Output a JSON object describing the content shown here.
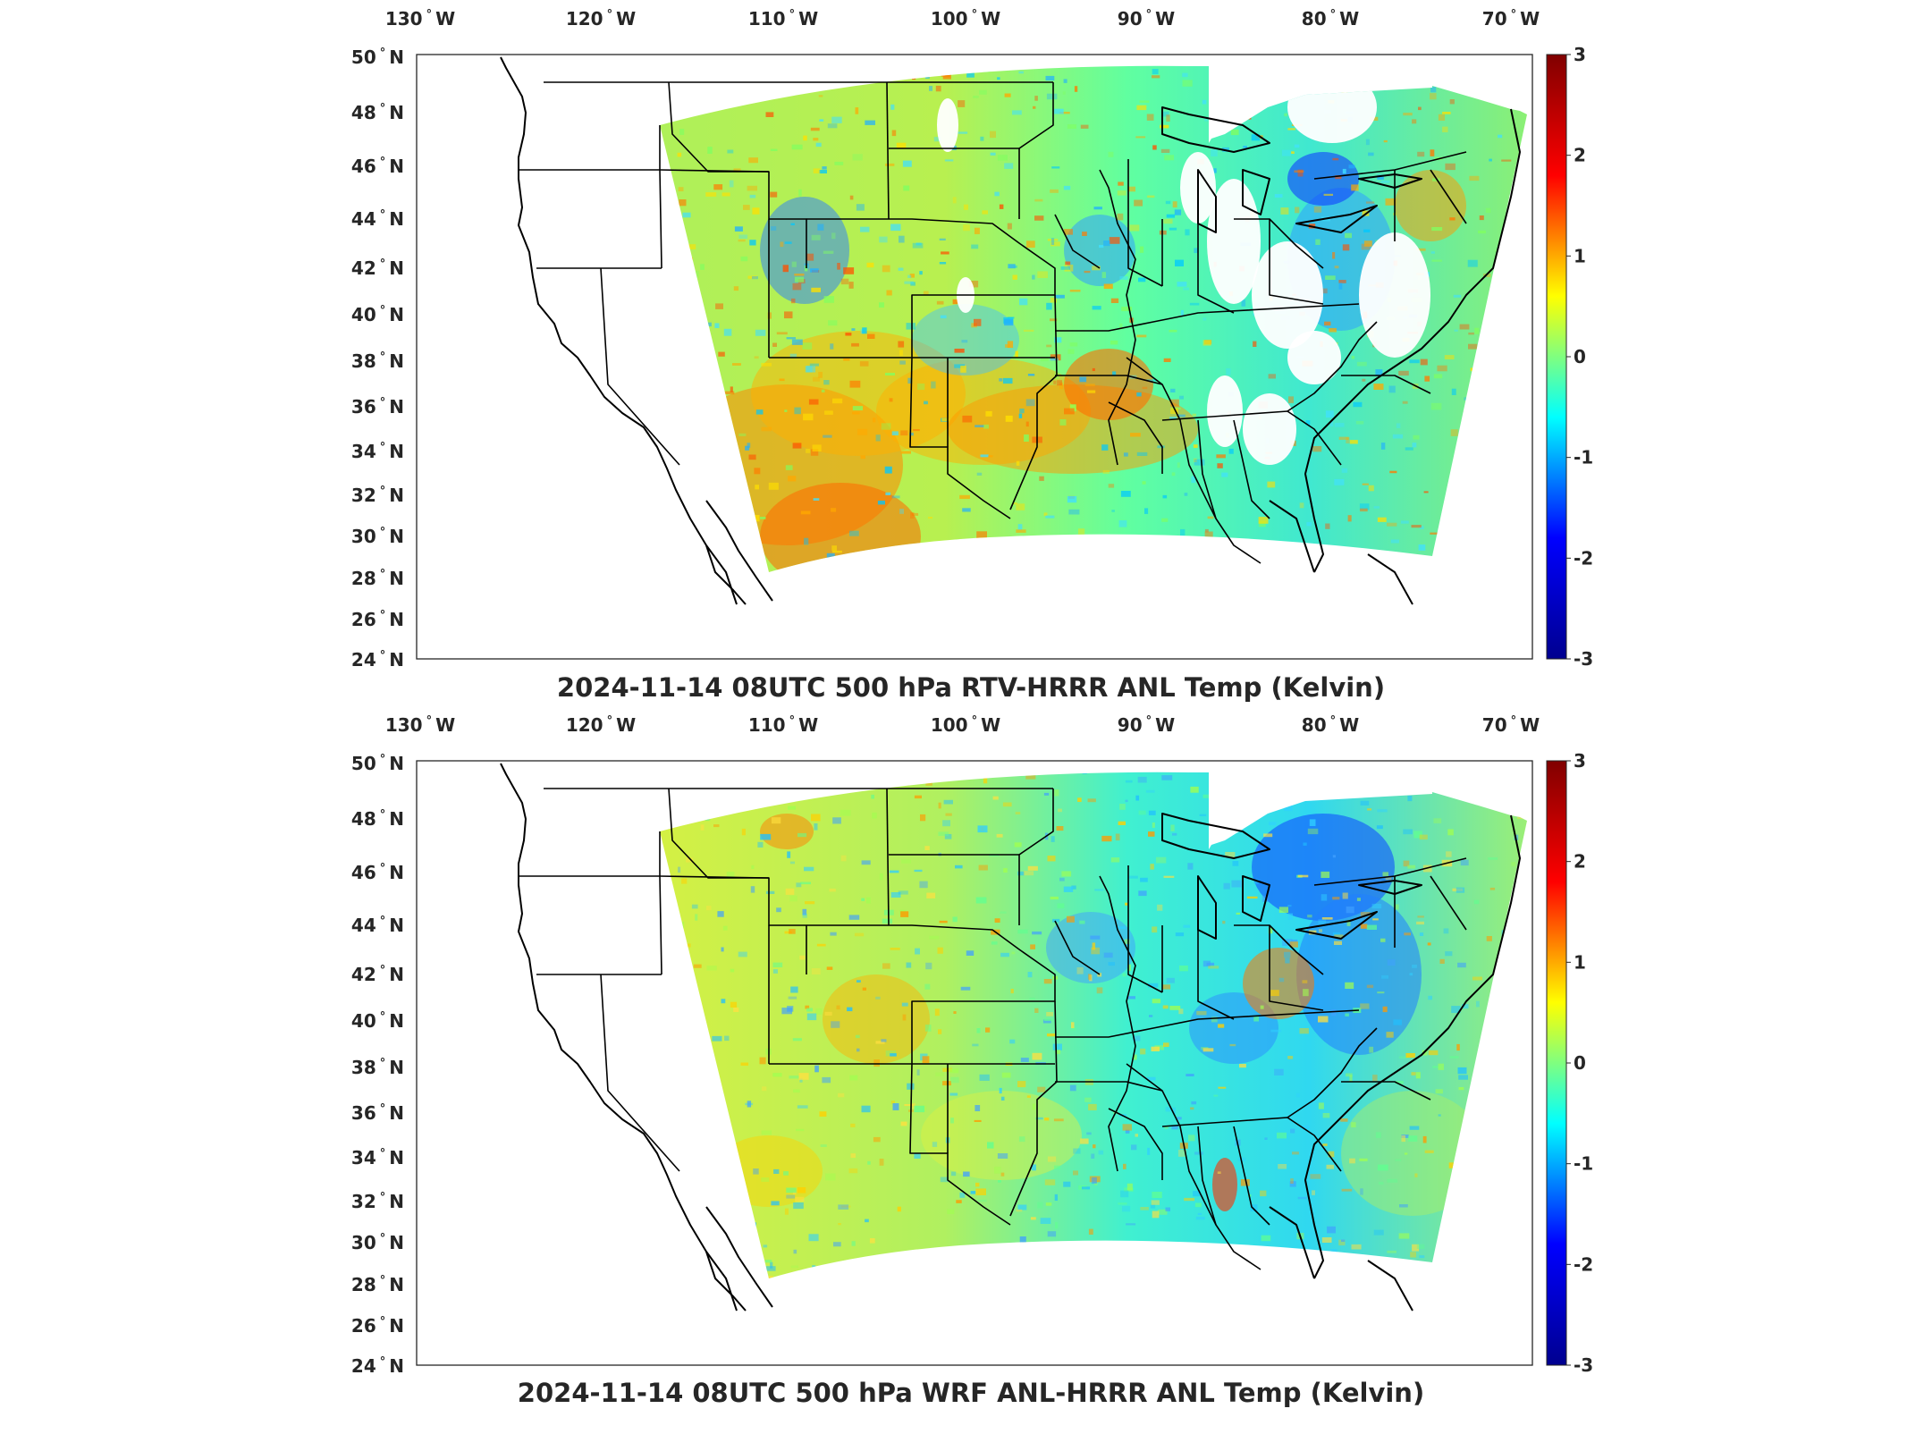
{
  "panels": [
    {
      "title": "2024-11-14 08UTC 500 hPa RTV-HRRR ANL Temp (Kelvin)",
      "field_type": "rtv"
    },
    {
      "title": "2024-11-14 08UTC 500 hPa WRF ANL-HRRR ANL Temp (Kelvin)",
      "field_type": "wrf"
    }
  ],
  "lon_labels": [
    {
      "deg": "130",
      "hem": "W"
    },
    {
      "deg": "120",
      "hem": "W"
    },
    {
      "deg": "110",
      "hem": "W"
    },
    {
      "deg": "100",
      "hem": "W"
    },
    {
      "deg": "90",
      "hem": "W"
    },
    {
      "deg": "80",
      "hem": "W"
    },
    {
      "deg": "70",
      "hem": "W"
    }
  ],
  "lat_labels": [
    {
      "deg": "50",
      "hem": "N"
    },
    {
      "deg": "48",
      "hem": "N"
    },
    {
      "deg": "46",
      "hem": "N"
    },
    {
      "deg": "44",
      "hem": "N"
    },
    {
      "deg": "42",
      "hem": "N"
    },
    {
      "deg": "40",
      "hem": "N"
    },
    {
      "deg": "38",
      "hem": "N"
    },
    {
      "deg": "36",
      "hem": "N"
    },
    {
      "deg": "34",
      "hem": "N"
    },
    {
      "deg": "32",
      "hem": "N"
    },
    {
      "deg": "30",
      "hem": "N"
    },
    {
      "deg": "28",
      "hem": "N"
    },
    {
      "deg": "26",
      "hem": "N"
    },
    {
      "deg": "24",
      "hem": "N"
    }
  ],
  "colorbar": {
    "ticks": [
      "3",
      "2",
      "1",
      "0",
      "-1",
      "-2",
      "-3"
    ],
    "range": [
      -3,
      3
    ],
    "colormap": "jet",
    "colors": [
      "#00008f",
      "#0000ff",
      "#00ffff",
      "#ffff00",
      "#ff0000",
      "#800000"
    ]
  }
}
